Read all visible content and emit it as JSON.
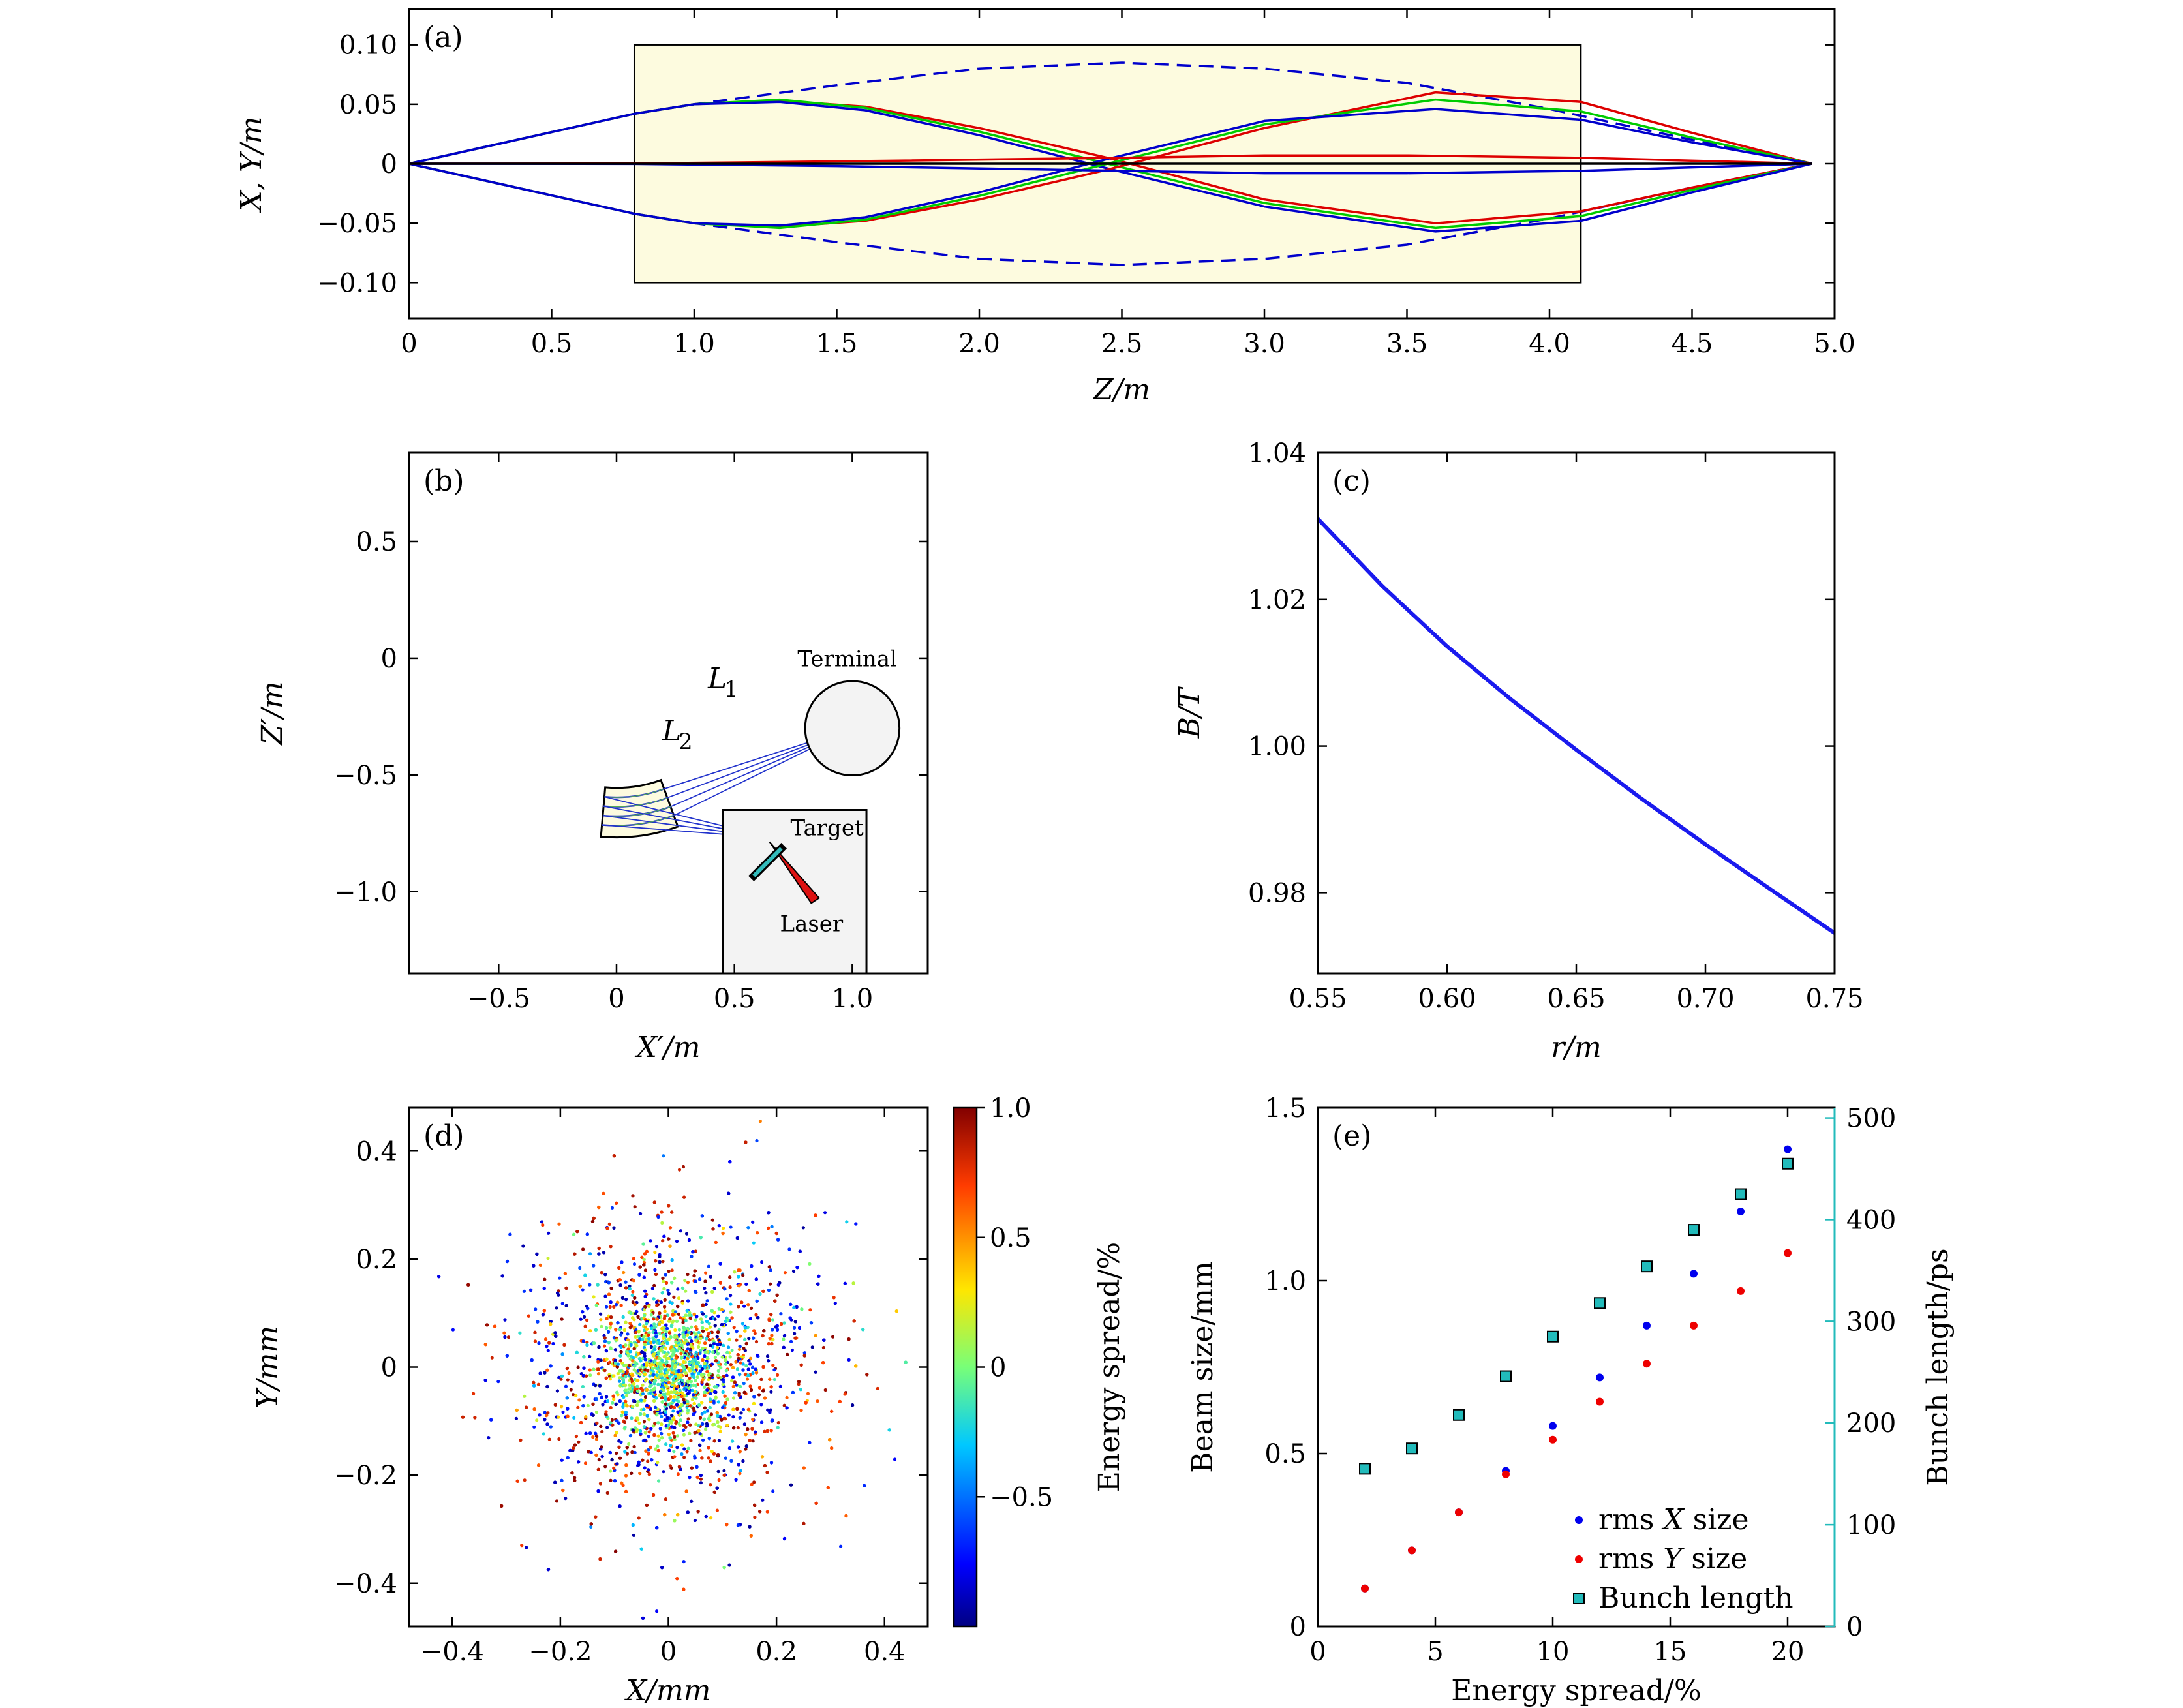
{
  "chart_data": [
    {
      "type": "line",
      "panel_label": "(a)",
      "xlabel": "Z/m",
      "ylabel": "X, Y/m",
      "xlim": [
        0,
        5.0
      ],
      "ylim": [
        -0.13,
        0.13
      ],
      "xticks": [
        0,
        0.5,
        1.0,
        1.5,
        2.0,
        2.5,
        3.0,
        3.5,
        4.0,
        4.5,
        5.0
      ],
      "xtick_labels": [
        "0",
        "0.5",
        "1.0",
        "1.5",
        "2.0",
        "2.5",
        "3.0",
        "3.5",
        "4.0",
        "4.5",
        "5.0"
      ],
      "yticks": [
        -0.1,
        -0.05,
        0,
        0.05,
        0.1
      ],
      "ytick_labels": [
        "−0.10",
        "−0.05",
        "0",
        "0.05",
        "0.10"
      ],
      "shaded_region": {
        "x": [
          0.79,
          4.11
        ],
        "y": [
          -0.1,
          0.1
        ],
        "color": "#fdfbdf"
      },
      "series": [
        {
          "color": "#0000cc",
          "style": "dashed",
          "x": [
            0,
            0.79,
            1.0,
            1.5,
            2.0,
            2.5,
            3.0,
            3.5,
            4.0,
            4.5,
            4.92
          ],
          "y": [
            0,
            0.042,
            0.05,
            0.066,
            0.08,
            0.085,
            0.08,
            0.068,
            0.046,
            0.02,
            0
          ]
        },
        {
          "color": "#0000cc",
          "style": "dashed",
          "x": [
            0,
            0.79,
            1.0,
            1.5,
            2.0,
            2.5,
            3.0,
            3.5,
            4.0,
            4.5,
            4.92
          ],
          "y": [
            0,
            -0.042,
            -0.05,
            -0.066,
            -0.08,
            -0.085,
            -0.08,
            -0.068,
            -0.046,
            -0.02,
            0
          ]
        },
        {
          "color": "#dd0000",
          "style": "solid",
          "x": [
            0,
            0.79,
            1.0,
            1.3,
            1.6,
            2.0,
            2.45,
            3.0,
            3.6,
            4.11,
            4.5,
            4.92
          ],
          "y": [
            0,
            0.042,
            0.05,
            0.053,
            0.048,
            0.03,
            0.005,
            -0.03,
            -0.05,
            -0.04,
            -0.02,
            0
          ]
        },
        {
          "color": "#00cc00",
          "style": "solid",
          "x": [
            0,
            0.79,
            1.0,
            1.3,
            1.6,
            2.0,
            2.45,
            3.0,
            3.6,
            4.11,
            4.5,
            4.92
          ],
          "y": [
            0,
            0.042,
            0.05,
            0.054,
            0.047,
            0.027,
            0.0,
            -0.033,
            -0.054,
            -0.044,
            -0.022,
            0
          ]
        },
        {
          "color": "#0000cc",
          "style": "solid",
          "x": [
            0,
            0.79,
            1.0,
            1.3,
            1.6,
            2.0,
            2.45,
            3.0,
            3.6,
            4.11,
            4.5,
            4.92
          ],
          "y": [
            0,
            0.042,
            0.05,
            0.052,
            0.045,
            0.024,
            -0.004,
            -0.036,
            -0.057,
            -0.048,
            -0.024,
            0
          ]
        },
        {
          "color": "#dd0000",
          "style": "solid",
          "x": [
            0,
            0.79,
            1.0,
            1.3,
            1.6,
            2.0,
            2.45,
            3.0,
            3.6,
            4.11,
            4.5,
            4.92
          ],
          "y": [
            0,
            -0.042,
            -0.05,
            -0.053,
            -0.048,
            -0.03,
            -0.005,
            0.03,
            0.06,
            0.052,
            0.026,
            0
          ]
        },
        {
          "color": "#00cc00",
          "style": "solid",
          "x": [
            0,
            0.79,
            1.0,
            1.3,
            1.6,
            2.0,
            2.45,
            3.0,
            3.6,
            4.11,
            4.5,
            4.92
          ],
          "y": [
            0,
            -0.042,
            -0.05,
            -0.054,
            -0.047,
            -0.027,
            0.0,
            0.033,
            0.054,
            0.044,
            0.022,
            0
          ]
        },
        {
          "color": "#0000cc",
          "style": "solid",
          "x": [
            0,
            0.79,
            1.0,
            1.3,
            1.6,
            2.0,
            2.45,
            3.0,
            3.6,
            4.11,
            4.5,
            4.92
          ],
          "y": [
            0,
            -0.042,
            -0.05,
            -0.052,
            -0.045,
            -0.024,
            0.004,
            0.036,
            0.046,
            0.037,
            0.018,
            0
          ]
        },
        {
          "color": "#dd0000",
          "style": "solid",
          "x": [
            0,
            0.79,
            1.5,
            2.5,
            3.0,
            3.5,
            4.11,
            4.92
          ],
          "y": [
            0,
            0.0002,
            0.002,
            0.005,
            0.007,
            0.007,
            0.005,
            0
          ]
        },
        {
          "color": "#0000cc",
          "style": "solid",
          "x": [
            0,
            0.79,
            1.5,
            2.5,
            3.0,
            3.5,
            4.11,
            4.92
          ],
          "y": [
            0,
            -0.0002,
            -0.002,
            -0.006,
            -0.008,
            -0.008,
            -0.006,
            0
          ]
        },
        {
          "color": "#000000",
          "style": "solid",
          "x": [
            0,
            4.92
          ],
          "y": [
            0,
            0
          ]
        }
      ]
    },
    {
      "type": "diagram",
      "panel_label": "(b)",
      "xlabel": "X′/m",
      "ylabel": "Z′/m",
      "xlim": [
        -0.88,
        1.32
      ],
      "ylim": [
        -1.35,
        0.88
      ],
      "xticks": [
        -0.5,
        0,
        0.5,
        1.0
      ],
      "xtick_labels": [
        "−0.5",
        "0",
        "0.5",
        "1.0"
      ],
      "yticks": [
        -1.0,
        -0.5,
        0,
        0.5
      ],
      "ytick_labels": [
        "−1.0",
        "−0.5",
        "0",
        "0.5"
      ],
      "annotations": {
        "terminal": "Terminal",
        "target": "Target",
        "laser": "Laser",
        "l1": "L",
        "l1_sub": "1",
        "l2": "L",
        "l2_sub": "2"
      },
      "magnet": {
        "center": [
          0,
          0
        ],
        "inner_radius": 0.55,
        "outer_radius": 0.76,
        "orbit_radii": [
          0.59,
          0.63,
          0.67,
          0.71
        ],
        "from_deg": -70,
        "to_deg": 265
      },
      "terminal": {
        "center": [
          1.0,
          -0.3
        ],
        "radius": 0.2
      },
      "target_box": {
        "x": [
          0.45,
          1.06
        ],
        "y": [
          -1.35,
          -0.65
        ]
      },
      "focus_point": [
        0.66,
        -0.77
      ]
    },
    {
      "type": "line",
      "panel_label": "(c)",
      "xlabel": "r/m",
      "ylabel": "B/T",
      "xlim": [
        0.55,
        0.75
      ],
      "ylim": [
        0.969,
        1.04
      ],
      "xticks": [
        0.55,
        0.6,
        0.65,
        0.7,
        0.75
      ],
      "xtick_labels": [
        "0.55",
        "0.60",
        "0.65",
        "0.70",
        "0.75"
      ],
      "yticks": [
        0.98,
        1.0,
        1.02,
        1.04
      ],
      "ytick_labels": [
        "0.98",
        "1.00",
        "1.02",
        "1.04"
      ],
      "series": [
        {
          "color": "#1a1aee",
          "x": [
            0.55,
            0.575,
            0.6,
            0.625,
            0.65,
            0.675,
            0.7,
            0.725,
            0.75
          ],
          "y": [
            1.031,
            1.0218,
            1.0136,
            1.0063,
            0.9995,
            0.9929,
            0.9866,
            0.9805,
            0.9745
          ]
        }
      ]
    },
    {
      "type": "scatter",
      "panel_label": "(d)",
      "xlabel": "X/mm",
      "ylabel": "Y/mm",
      "colorbar_label": "Energy spread/%",
      "xlim": [
        -0.48,
        0.48
      ],
      "ylim": [
        -0.48,
        0.48
      ],
      "xticks": [
        -0.4,
        -0.2,
        0,
        0.2,
        0.4
      ],
      "xtick_labels": [
        "−0.4",
        "−0.2",
        "0",
        "0.2",
        "0.4"
      ],
      "yticks": [
        -0.4,
        -0.2,
        0,
        0.2,
        0.4
      ],
      "ytick_labels": [
        "−0.4",
        "−0.2",
        "0",
        "0.2",
        "0.4"
      ],
      "colorbar_range": [
        -1.0,
        1.0
      ],
      "colorbar_ticks": [
        -0.5,
        0,
        0.5,
        1.0
      ],
      "colorbar_tick_labels": [
        "−0.5",
        "0",
        "0.5",
        "1.0"
      ],
      "distribution": {
        "mean": [
          0,
          0
        ],
        "core_sd_mm": 0.06,
        "halo_sd_mm": 0.14,
        "points": 5200
      }
    },
    {
      "type": "scatter",
      "panel_label": "(e)",
      "xlabel": "Energy spread/%",
      "ylabel": "Beam size/mm",
      "y2label": "Bunch length/ps",
      "xlim": [
        0,
        22
      ],
      "ylim": [
        0,
        1.5
      ],
      "y2lim": [
        0,
        510
      ],
      "xticks": [
        0,
        5,
        10,
        15,
        20
      ],
      "xtick_labels": [
        "0",
        "5",
        "10",
        "15",
        "20"
      ],
      "yticks": [
        0,
        0.5,
        1.0,
        1.5
      ],
      "ytick_labels": [
        "0",
        "0.5",
        "1.0",
        "1.5"
      ],
      "y2ticks": [
        0,
        100,
        200,
        300,
        400,
        500
      ],
      "y2tick_labels": [
        "0",
        "100",
        "200",
        "300",
        "400",
        "500"
      ],
      "legend_position": "bottom-right",
      "categories": [
        2,
        4,
        6,
        8,
        10,
        12,
        14,
        16,
        18,
        20
      ],
      "series": [
        {
          "name": "rms X size",
          "legend_parts": [
            "rms ",
            "X",
            " size"
          ],
          "color": "#0000ee",
          "marker": "dot",
          "axis": "left",
          "values": [
            0.11,
            0.22,
            0.33,
            0.45,
            0.58,
            0.72,
            0.87,
            1.02,
            1.2,
            1.38
          ]
        },
        {
          "name": "rms Y size",
          "legend_parts": [
            "rms ",
            "Y",
            " size"
          ],
          "color": "#ee0000",
          "marker": "dot",
          "axis": "left",
          "values": [
            0.11,
            0.22,
            0.33,
            0.44,
            0.54,
            0.65,
            0.76,
            0.87,
            0.97,
            1.08
          ]
        },
        {
          "name": "Bunch length",
          "legend_parts": [
            "Bunch length"
          ],
          "color": "#22bbbb",
          "marker": "square",
          "axis": "right",
          "values": [
            155,
            175,
            208,
            246,
            285,
            318,
            354,
            390,
            425,
            455
          ]
        }
      ]
    }
  ]
}
